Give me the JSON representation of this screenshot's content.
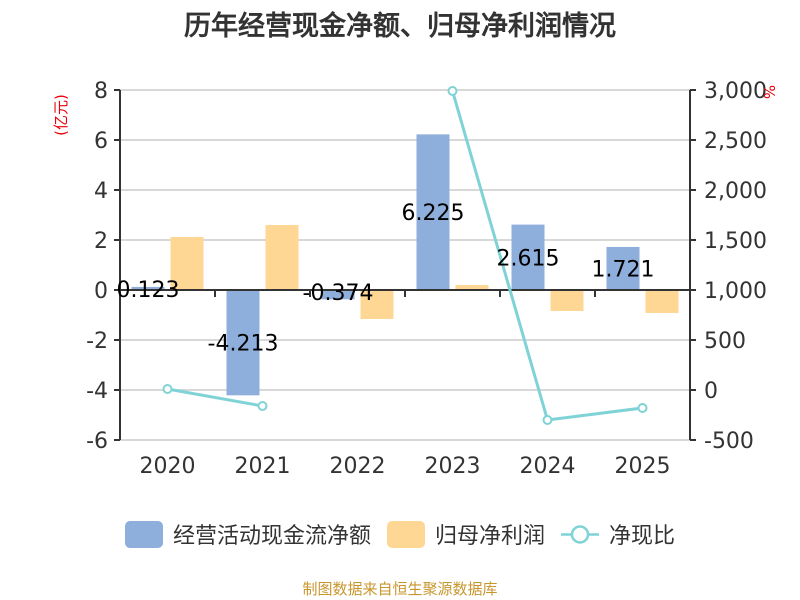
{
  "title": "历年经营现金净额、归母净利润情况",
  "source_text": "制图数据来自恒生聚源数据库",
  "colors": {
    "cashflow": "#8eaedb",
    "net_profit": "#ffd794",
    "ratio": "#7fd3d6",
    "axis_unit": "#e8000b",
    "source": "#c8962d"
  },
  "legend": {
    "cashflow_label": "经营活动现金流净额",
    "net_profit_label": "归母净利润",
    "ratio_label": "净现比"
  },
  "chart_data": {
    "type": "bar",
    "title": "历年经营现金净额、归母净利润情况",
    "categories": [
      "2020",
      "2021",
      "2022",
      "2023",
      "2024",
      "2025"
    ],
    "left_axis": {
      "unit_label": "(亿元)",
      "ylim": [
        -6,
        8
      ],
      "ticks": [
        "8",
        "6",
        "4",
        "2",
        "0",
        "-2",
        "-4",
        "-6"
      ],
      "tick_values": [
        8,
        6,
        4,
        2,
        0,
        -2,
        -4,
        -6
      ]
    },
    "right_axis": {
      "unit_label": "%",
      "ylim": [
        -500,
        3000
      ],
      "ticks": [
        "3,000",
        "2,500",
        "2,000",
        "1,500",
        "1,000",
        "500",
        "0",
        "-500"
      ],
      "tick_values": [
        3000,
        2500,
        2000,
        1500,
        1000,
        500,
        0,
        -500
      ]
    },
    "grid": true,
    "legend_position": "bottom",
    "series": [
      {
        "name": "经营活动现金流净额",
        "type": "bar",
        "axis": "left",
        "values": [
          0.123,
          -4.213,
          -0.374,
          6.225,
          2.615,
          1.721
        ],
        "labels": [
          "0.123",
          "-4.213",
          "-0.374",
          "6.225",
          "2.615",
          "1.721"
        ]
      },
      {
        "name": "归母净利润",
        "type": "bar",
        "axis": "left",
        "values": [
          2.12,
          2.6,
          -1.16,
          0.2,
          -0.84,
          -0.92
        ]
      },
      {
        "name": "净现比",
        "type": "line",
        "axis": "right",
        "values": [
          10,
          -160,
          null,
          2990,
          -300,
          -180
        ]
      }
    ]
  }
}
